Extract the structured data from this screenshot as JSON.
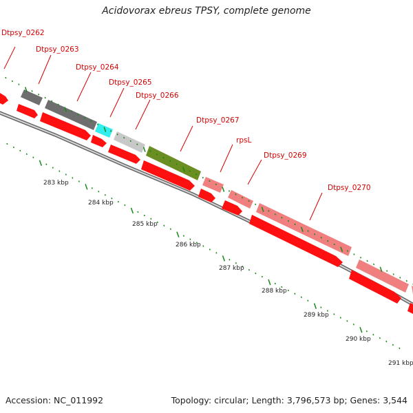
{
  "title": "Acidovorax ebreus TPSY, complete genome",
  "accession": "Accession: NC_011992",
  "summary": "Topology: circular; Length: 3,796,573 bp; Genes: 3,544",
  "gene_labels": [
    "Dtpsy_0262",
    "Dtpsy_0263",
    "Dtpsy_0264",
    "Dtpsy_0265",
    "Dtpsy_0266",
    "Dtpsy_0267",
    "rpsL",
    "Dtpsy_0269",
    "Dtpsy_0270"
  ],
  "axis_ticks": [
    "283 kbp",
    "284 kbp",
    "285 kbp",
    "286 kbp",
    "287 kbp",
    "288 kbp",
    "289 kbp",
    "290 kbp",
    "291 kbp"
  ],
  "colors": {
    "label_red": "#d40000",
    "cds_red": "#ff1010",
    "backbone": "#999999",
    "tick_green": "#138a13",
    "gene_dark_gray": "#6e6e6e",
    "gene_cyan": "#33eeee",
    "gene_light_gray": "#c8c8c8",
    "gene_olive": "#6b8e23",
    "gene_pink": "#f08080"
  }
}
